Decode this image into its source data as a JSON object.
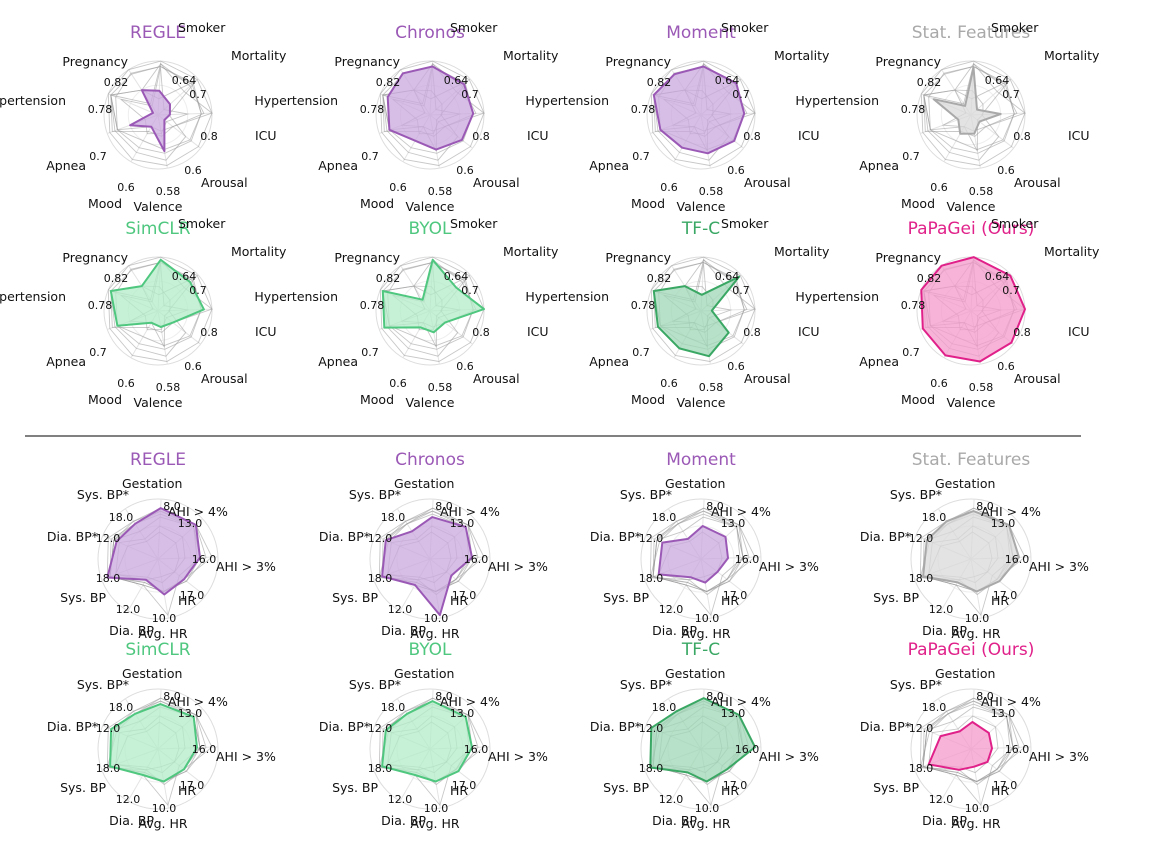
{
  "colors": {
    "purple": "#9b59b6",
    "purple_fill": "#c9a8dd",
    "gray": "#a9a9a9",
    "gray_fill": "#d9d9d9",
    "green": "#4fc77f",
    "green_fill": "#b3ecc8",
    "darkgreen": "#3aa864",
    "darkgreen_fill": "#9fd7b5",
    "pink": "#e0218a",
    "pink_fill": "#f59bcb",
    "ghost": "#999999"
  },
  "chart_data": [
    {
      "type": "radar",
      "panel": "top",
      "axes": [
        "Smoker",
        "Mortality",
        "ICU",
        "Arousal",
        "Valence",
        "Mood",
        "Apnea",
        "Hypertension",
        "Pregnancy"
      ],
      "tick_labels": [
        "0.64",
        "0.7",
        "0.8",
        "0.6",
        "0.58",
        "0.6",
        "0.7",
        "0.78",
        "0.82"
      ],
      "grid": true,
      "models": [
        {
          "name": "REGLE",
          "color": "purple",
          "values": [
            0.45,
            0.3,
            0.22,
            0.15,
            0.68,
            0.25,
            0.55,
            0.1,
            0.55
          ]
        },
        {
          "name": "Chronos",
          "color": "purple",
          "values": [
            0.9,
            0.85,
            0.8,
            0.75,
            0.65,
            0.55,
            0.8,
            0.85,
            0.92
          ]
        },
        {
          "name": "Moment",
          "color": "purple",
          "values": [
            0.9,
            0.88,
            0.8,
            0.78,
            0.72,
            0.7,
            0.8,
            0.95,
            0.9
          ]
        },
        {
          "name": "Stat. Features",
          "color": "gray",
          "values": [
            0.88,
            0.15,
            0.55,
            0.2,
            0.35,
            0.4,
            0.25,
            0.75,
            0.2
          ]
        },
        {
          "name": "SimCLR",
          "color": "green",
          "values": [
            0.95,
            0.8,
            0.85,
            0.35,
            0.3,
            0.25,
            0.8,
            0.95,
            0.55
          ]
        },
        {
          "name": "BYOL",
          "color": "green",
          "values": [
            0.95,
            0.65,
            1.0,
            0.35,
            0.4,
            0.35,
            0.9,
            0.95,
            0.25
          ]
        },
        {
          "name": "TF-C",
          "color": "darkgreen",
          "values": [
            0.3,
            0.95,
            0.2,
            0.65,
            0.85,
            0.8,
            0.85,
            0.95,
            0.55
          ]
        },
        {
          "name": "PaPaGei (Ours)",
          "color": "pink",
          "values": [
            1.0,
            0.98,
            1.0,
            0.95,
            0.95,
            0.95,
            0.95,
            1.0,
            1.0
          ]
        }
      ]
    },
    {
      "type": "radar",
      "panel": "bottom",
      "axes": [
        "Gestation",
        "AHI > 4%",
        "AHI > 3%",
        "HR",
        "Avg. HR",
        "Dia. BP",
        "Sys. BP",
        "Dia. BP*",
        "Sys. BP*"
      ],
      "tick_labels": [
        "8.0",
        "13.0",
        "16.0",
        "17.0",
        "10.0",
        "12.0",
        "18.0",
        "12.0",
        "18.0"
      ],
      "grid": true,
      "models": [
        {
          "name": "REGLE",
          "color": "purple",
          "values": [
            0.85,
            0.85,
            0.7,
            0.55,
            0.6,
            0.4,
            0.9,
            0.75,
            0.7
          ]
        },
        {
          "name": "Chronos",
          "color": "purple",
          "values": [
            0.7,
            0.8,
            0.7,
            0.45,
            0.95,
            0.5,
            0.85,
            0.8,
            0.55
          ]
        },
        {
          "name": "Moment",
          "color": "purple",
          "values": [
            0.55,
            0.55,
            0.45,
            0.35,
            0.4,
            0.35,
            0.75,
            0.7,
            0.4
          ]
        },
        {
          "name": "Stat. Features",
          "color": "gray",
          "values": [
            0.8,
            0.85,
            0.8,
            0.6,
            0.55,
            0.45,
            0.85,
            0.8,
            0.75
          ]
        },
        {
          "name": "SimCLR",
          "color": "green",
          "values": [
            0.75,
            0.8,
            0.65,
            0.55,
            0.55,
            0.5,
            0.85,
            0.85,
            0.7
          ]
        },
        {
          "name": "BYOL",
          "color": "green",
          "values": [
            0.8,
            0.8,
            0.7,
            0.6,
            0.55,
            0.5,
            0.85,
            0.8,
            0.7
          ]
        },
        {
          "name": "TF-C",
          "color": "darkgreen",
          "values": [
            0.85,
            0.85,
            0.9,
            0.55,
            0.55,
            0.45,
            0.9,
            0.9,
            0.75
          ]
        },
        {
          "name": "PaPaGei (Ours)",
          "color": "pink",
          "values": [
            0.45,
            0.4,
            0.35,
            0.35,
            0.3,
            0.4,
            0.75,
            0.55,
            0.35
          ]
        }
      ]
    }
  ]
}
